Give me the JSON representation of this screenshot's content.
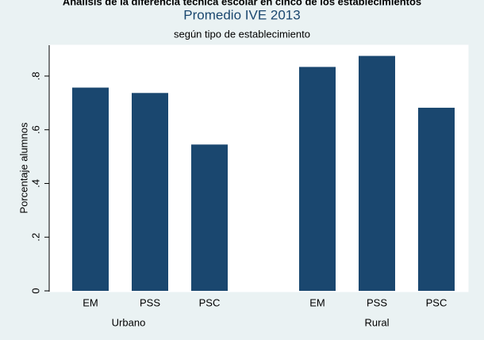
{
  "chart_data": {
    "type": "bar",
    "title": "Análisis de la diferencia técnica escolar en cinco de los establecimientos",
    "subtitle_main": "Promedio IVE 2013",
    "subtitle": "según tipo de establecimiento",
    "y_label": "Porcentaje alumnos",
    "color": "#1a476f",
    "groups": [
      {
        "name": "Urbano",
        "categories": [
          "EM",
          "PSS",
          "PSC"
        ],
        "values": [
          0.757,
          0.737,
          0.545
        ]
      },
      {
        "name": "Rural",
        "categories": [
          "EM",
          "PSS",
          "PSC"
        ],
        "values": [
          0.834,
          0.875,
          0.682
        ]
      }
    ],
    "ylim": [
      0,
      0.915
    ],
    "yticks": [
      0,
      {
        "value": 0.2,
        "label": ".2"
      },
      {
        "value": 0.4,
        "label": ".4"
      },
      {
        "value": 0.6,
        "label": ".6"
      },
      {
        "value": 0.8,
        "label": ".8"
      }
    ]
  }
}
